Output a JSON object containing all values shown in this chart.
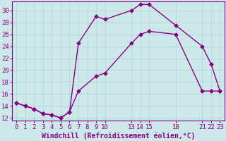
{
  "xlabel": "Windchill (Refroidissement éolien,°C)",
  "bg_color": "#cce8e8",
  "line_color": "#880088",
  "xlim": [
    -0.5,
    23.5
  ],
  "ylim": [
    11.5,
    31.5
  ],
  "xticks": [
    0,
    1,
    2,
    3,
    4,
    5,
    6,
    7,
    8,
    9,
    10,
    13,
    14,
    15,
    18,
    21,
    22,
    23
  ],
  "yticks": [
    12,
    14,
    16,
    18,
    20,
    22,
    24,
    26,
    28,
    30
  ],
  "series1_x": [
    0,
    1,
    2,
    3,
    4,
    5,
    6,
    7,
    9,
    10,
    13,
    14,
    15,
    18,
    21,
    22,
    23
  ],
  "series1_y": [
    14.5,
    14.0,
    13.5,
    12.7,
    12.5,
    12.0,
    13.0,
    24.5,
    29.0,
    28.5,
    30.0,
    31.0,
    31.0,
    27.5,
    24.0,
    21.0,
    16.5
  ],
  "series2_x": [
    0,
    1,
    2,
    3,
    4,
    5,
    6,
    7,
    9,
    10,
    13,
    14,
    15,
    18,
    21,
    22,
    23
  ],
  "series2_y": [
    14.5,
    14.0,
    13.5,
    12.7,
    12.5,
    12.0,
    13.0,
    16.5,
    19.0,
    19.5,
    24.5,
    26.0,
    26.5,
    26.0,
    16.5,
    16.5,
    16.5
  ],
  "grid_color": "#aad4d4",
  "marker": "D",
  "markersize": 2.5,
  "linewidth": 1.0,
  "tick_fontsize": 6.5,
  "xlabel_fontsize": 7.0
}
